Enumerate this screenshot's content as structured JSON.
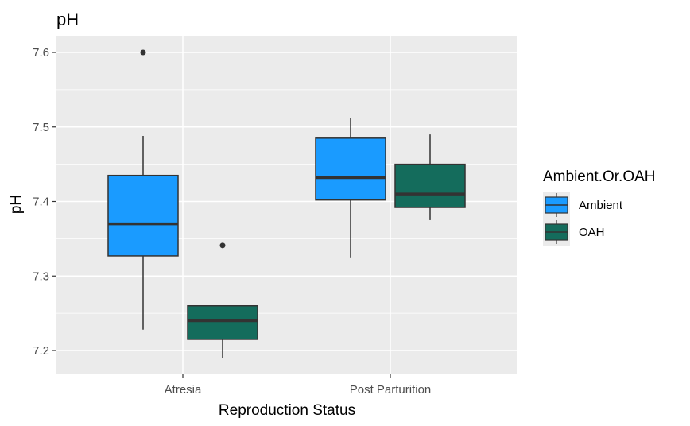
{
  "chart_data": {
    "type": "boxplot",
    "title": "pH",
    "xlabel": "Reproduction Status",
    "ylabel": "pH",
    "categories": [
      "Atresia",
      "Post Parturition"
    ],
    "ylim": [
      7.17,
      7.62
    ],
    "yticks": [
      "7.2",
      "7.3",
      "7.4",
      "7.5",
      "7.6"
    ],
    "legend": {
      "title": "Ambient.Or.OAH",
      "position": "right",
      "entries": [
        "Ambient",
        "OAH"
      ]
    },
    "grid": true,
    "series": [
      {
        "name": "Ambient",
        "color": "#1a9bff",
        "boxes": [
          {
            "category": "Atresia",
            "whisker_low": 7.228,
            "q1": 7.327,
            "median": 7.37,
            "q3": 7.435,
            "whisker_high": 7.488,
            "outliers": [
              7.6
            ]
          },
          {
            "category": "Post Parturition",
            "whisker_low": 7.325,
            "q1": 7.402,
            "median": 7.432,
            "q3": 7.485,
            "whisker_high": 7.512,
            "outliers": []
          }
        ]
      },
      {
        "name": "OAH",
        "color": "#146c5c",
        "boxes": [
          {
            "category": "Atresia",
            "whisker_low": 7.19,
            "q1": 7.215,
            "median": 7.24,
            "q3": 7.26,
            "whisker_high": 7.26,
            "outliers": [
              7.341
            ]
          },
          {
            "category": "Post Parturition",
            "whisker_low": 7.375,
            "q1": 7.392,
            "median": 7.41,
            "q3": 7.45,
            "whisker_high": 7.49,
            "outliers": []
          }
        ]
      }
    ]
  }
}
